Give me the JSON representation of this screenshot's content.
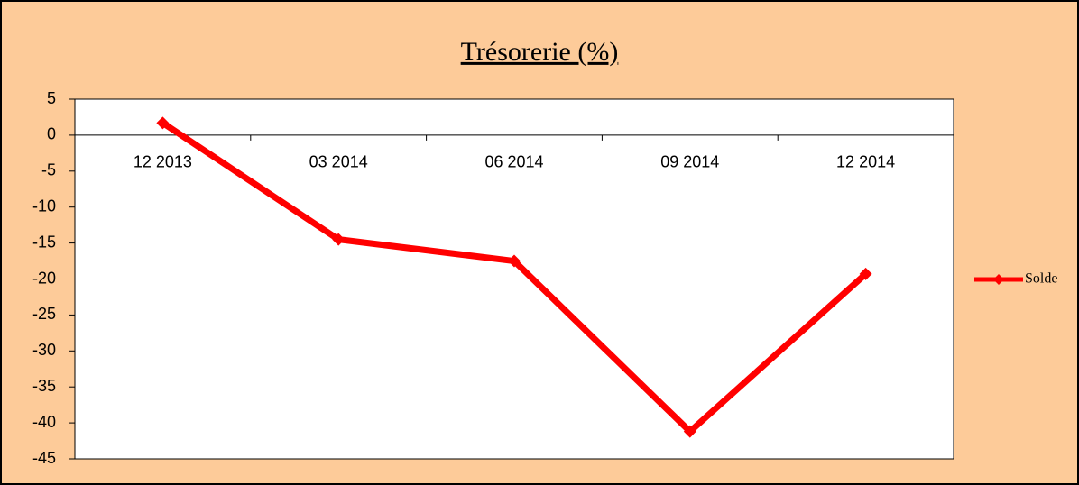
{
  "chart_data": {
    "type": "line",
    "title": "Trésorerie (%)",
    "categories": [
      "12 2013",
      "03 2014",
      "06 2014",
      "09 2014",
      "12 2014"
    ],
    "series": [
      {
        "name": "Solde",
        "color": "#ff0000",
        "values": [
          1.7,
          -14.5,
          -17.5,
          -41.2,
          -19.3
        ]
      }
    ],
    "ylim": [
      -45,
      5
    ],
    "yticks": [
      -45,
      -40,
      -35,
      -30,
      -25,
      -20,
      -15,
      -10,
      -5,
      0,
      5
    ],
    "grid": false,
    "legend": "right"
  }
}
